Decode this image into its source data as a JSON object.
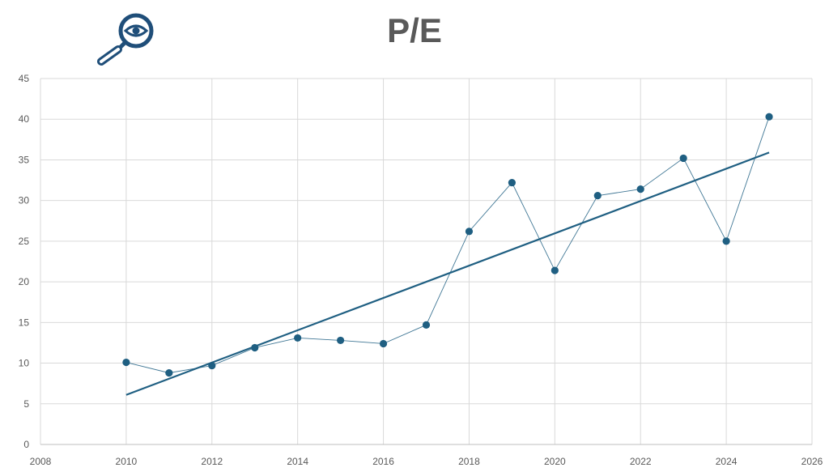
{
  "chart_data": {
    "type": "scatter",
    "title": "P/E",
    "xlabel": "",
    "ylabel": "",
    "xlim": [
      2008,
      2026
    ],
    "ylim": [
      0,
      45
    ],
    "xticks": [
      2008,
      2010,
      2012,
      2014,
      2016,
      2018,
      2020,
      2022,
      2024,
      2026
    ],
    "yticks": [
      0,
      5,
      10,
      15,
      20,
      25,
      30,
      35,
      40,
      45
    ],
    "grid": true,
    "colors": {
      "series": "#1f5f82",
      "trend": "#1f5f82",
      "grid": "#d9d9d9",
      "text": "#595959"
    },
    "series": [
      {
        "x": [
          2010,
          2011,
          2012,
          2013,
          2014,
          2015,
          2016,
          2017,
          2018,
          2019,
          2020,
          2021,
          2022,
          2023,
          2024,
          2025
        ],
        "values": [
          10.1,
          8.8,
          9.7,
          11.9,
          13.1,
          12.8,
          12.4,
          14.7,
          26.2,
          32.2,
          21.4,
          30.6,
          31.4,
          35.2,
          25.0,
          40.3
        ]
      }
    ],
    "trendline": {
      "x": [
        2010,
        2025
      ],
      "values": [
        6.1,
        35.9
      ]
    }
  },
  "icons": {
    "logo": "magnifier-eye-icon"
  }
}
